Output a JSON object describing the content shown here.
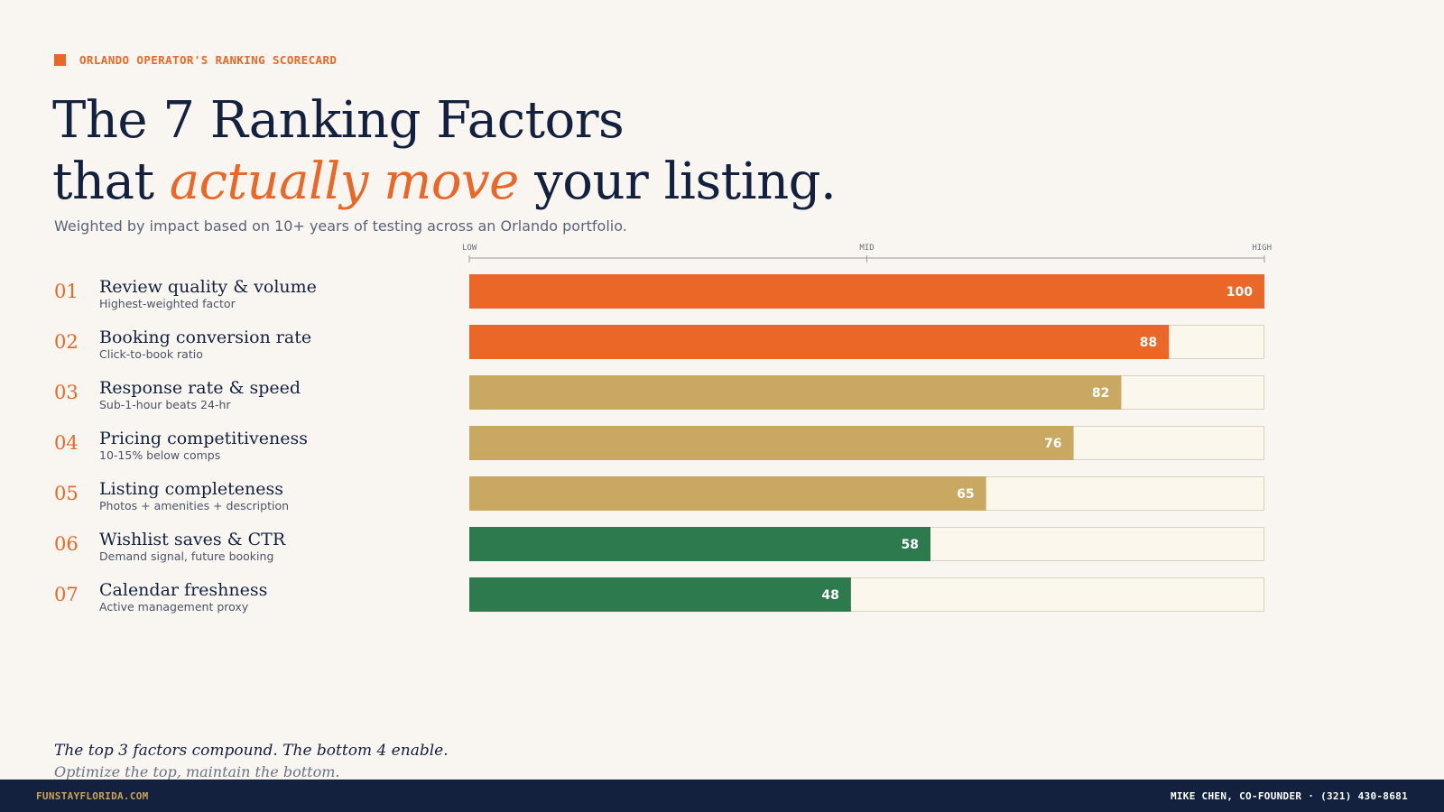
{
  "eyebrow": "ORLANDO OPERATOR'S RANKING SCORECARD",
  "headline": {
    "line1": "The 7 Ranking Factors",
    "line2_before": "that ",
    "line2_accent": "actually move",
    "line2_after": " your listing."
  },
  "subtitle": "Weighted by impact based on 10+ years of testing across an Orlando portfolio.",
  "colors": {
    "orange": "#ea6727",
    "gold": "#c9a862",
    "green": "#2d7a4e",
    "navy": "#13213f",
    "track": "#fbf7ec",
    "track_border": "#d8d1c0"
  },
  "chart_data": {
    "type": "bar",
    "orientation": "horizontal",
    "axis_labels": [
      "LOW",
      "MID",
      "HIGH"
    ],
    "xlim": [
      0,
      100
    ],
    "grid": false,
    "categories": [
      "Review quality & volume",
      "Booking conversion rate",
      "Response rate & speed",
      "Pricing competitiveness",
      "Listing completeness",
      "Wishlist saves & CTR",
      "Calendar freshness"
    ],
    "values": [
      100,
      88,
      82,
      76,
      65,
      58,
      48
    ],
    "items": [
      {
        "rank": "01",
        "name": "Review quality & volume",
        "sub": "Highest-weighted factor",
        "value": 100,
        "color": "#ea6727"
      },
      {
        "rank": "02",
        "name": "Booking conversion rate",
        "sub": "Click-to-book ratio",
        "value": 88,
        "color": "#ea6727"
      },
      {
        "rank": "03",
        "name": "Response rate & speed",
        "sub": "Sub-1-hour beats 24-hr",
        "value": 82,
        "color": "#c9a862"
      },
      {
        "rank": "04",
        "name": "Pricing competitiveness",
        "sub": "10-15% below comps",
        "value": 76,
        "color": "#c9a862"
      },
      {
        "rank": "05",
        "name": "Listing completeness",
        "sub": "Photos + amenities + description",
        "value": 65,
        "color": "#c9a862"
      },
      {
        "rank": "06",
        "name": "Wishlist saves & CTR",
        "sub": "Demand signal, future booking",
        "value": 58,
        "color": "#2d7a4e"
      },
      {
        "rank": "07",
        "name": "Calendar freshness",
        "sub": "Active management proxy",
        "value": 48,
        "color": "#2d7a4e"
      }
    ]
  },
  "closing": {
    "line1": "The top 3 factors compound. The bottom 4 enable.",
    "line2": "Optimize the top, maintain the bottom."
  },
  "footer": {
    "left": "FUNSTAYFLORIDA.COM",
    "right": "MIKE CHEN, CO-FOUNDER · (321) 430-8681"
  }
}
